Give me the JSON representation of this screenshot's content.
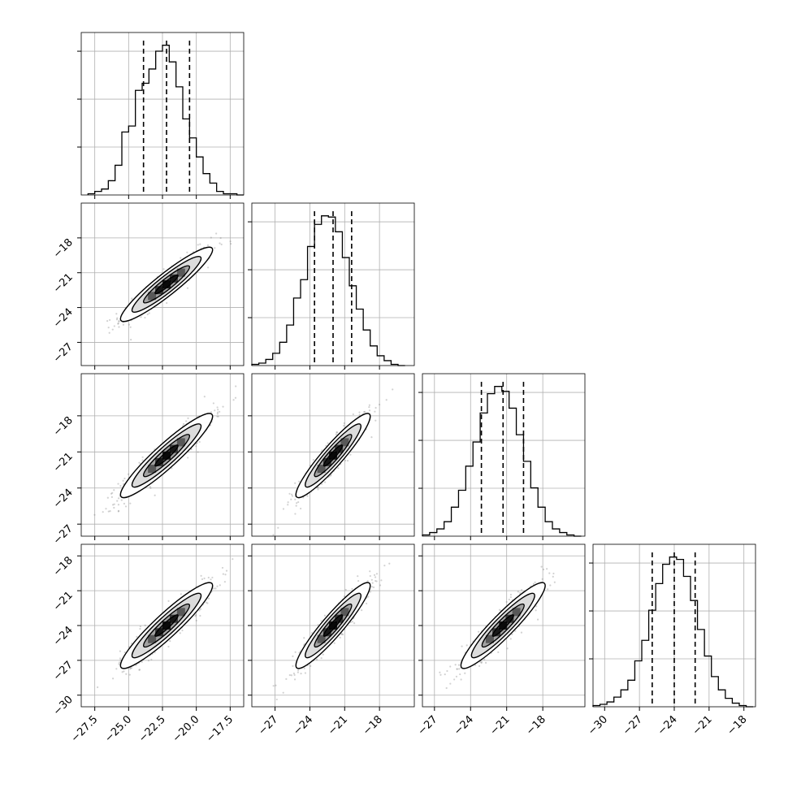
{
  "chart_data": {
    "type": "corner",
    "parameters": 4,
    "marginals": [
      {
        "name": "",
        "range": [
          -28.5,
          -16.5
        ],
        "ticks": [
          -27.5,
          -25.0,
          -22.5,
          -20.0,
          -17.5
        ],
        "tick_labels": [
          "−27.5",
          "−25.0",
          "−22.5",
          "−20.0",
          "−17.5"
        ],
        "quantiles": [
          -23.9,
          -22.2,
          -20.5
        ],
        "bin_centers": [
          -27.75,
          -27.25,
          -26.75,
          -26.25,
          -25.75,
          -25.25,
          -24.75,
          -24.25,
          -23.75,
          -23.25,
          -22.75,
          -22.25,
          -21.75,
          -21.25,
          -20.75,
          -20.25,
          -19.75,
          -19.25,
          -18.75,
          -18.25,
          -17.75,
          -17.25,
          -16.75
        ],
        "counts": [
          1,
          3,
          5,
          12,
          25,
          53,
          58,
          88,
          94,
          106,
          121,
          126,
          112,
          91,
          64,
          48,
          32,
          18,
          10,
          3,
          1,
          1,
          0
        ]
      },
      {
        "name": "",
        "range": [
          -29.0,
          -15.0
        ],
        "ticks": [
          -27,
          -24,
          -21,
          -18
        ],
        "tick_labels": [
          "−27",
          "−24",
          "−21",
          "−18"
        ],
        "quantiles": [
          -23.6,
          -22.0,
          -20.4
        ],
        "bin_centers": [
          -28.7,
          -28.1,
          -27.5,
          -26.9,
          -26.3,
          -25.7,
          -25.1,
          -24.5,
          -23.9,
          -23.3,
          -22.7,
          -22.1,
          -21.5,
          -20.9,
          -20.3,
          -19.7,
          -19.1,
          -18.5,
          -17.9,
          -17.3,
          -16.7,
          -16.1
        ],
        "counts": [
          1,
          2,
          5,
          10,
          19,
          33,
          55,
          70,
          97,
          115,
          122,
          121,
          109,
          88,
          65,
          46,
          29,
          16,
          8,
          4,
          1,
          0
        ]
      },
      {
        "name": "",
        "range": [
          -28.0,
          -14.5
        ],
        "ticks": [
          -27,
          -24,
          -21,
          -18
        ],
        "tick_labels": [
          "−27",
          "−24",
          "−21",
          "−18"
        ],
        "quantiles": [
          -23.1,
          -21.3,
          -19.6
        ],
        "bin_centers": [
          -27.7,
          -27.1,
          -26.5,
          -25.9,
          -25.3,
          -24.7,
          -24.1,
          -23.5,
          -22.9,
          -22.3,
          -21.7,
          -21.1,
          -20.5,
          -19.9,
          -19.3,
          -18.7,
          -18.1,
          -17.5,
          -16.9,
          -16.3,
          -15.7,
          -15.1
        ],
        "counts": [
          1,
          3,
          6,
          12,
          24,
          38,
          58,
          78,
          102,
          118,
          124,
          120,
          106,
          84,
          62,
          40,
          24,
          12,
          6,
          3,
          1,
          0
        ]
      },
      {
        "name": "",
        "range": [
          -31.0,
          -17.0
        ],
        "ticks": [
          -30,
          -27,
          -24,
          -21,
          -18
        ],
        "tick_labels": [
          "−30",
          "−27",
          "−24",
          "−21",
          "−18"
        ],
        "quantiles": [
          -25.9,
          -24.0,
          -22.2
        ],
        "bin_centers": [
          -30.7,
          -30.1,
          -29.5,
          -28.9,
          -28.3,
          -27.7,
          -27.1,
          -26.5,
          -25.9,
          -25.3,
          -24.7,
          -24.1,
          -23.5,
          -22.9,
          -22.3,
          -21.7,
          -21.1,
          -20.5,
          -19.9,
          -19.3,
          -18.7,
          -18.1,
          -17.5
        ],
        "counts": [
          1,
          2,
          4,
          8,
          14,
          22,
          38,
          55,
          80,
          102,
          118,
          124,
          122,
          108,
          88,
          64,
          42,
          25,
          14,
          7,
          3,
          1,
          0
        ]
      }
    ],
    "joint_panels": [
      {
        "row": 1,
        "col": 0,
        "center": [
          -22.2,
          -22.0
        ],
        "rho": 0.93
      },
      {
        "row": 2,
        "col": 0,
        "center": [
          -22.2,
          -21.3
        ],
        "rho": 0.93
      },
      {
        "row": 2,
        "col": 1,
        "center": [
          -22.0,
          -21.3
        ],
        "rho": 0.93
      },
      {
        "row": 3,
        "col": 0,
        "center": [
          -22.2,
          -24.0
        ],
        "rho": 0.93
      },
      {
        "row": 3,
        "col": 1,
        "center": [
          -22.0,
          -24.0
        ],
        "rho": 0.93
      },
      {
        "row": 3,
        "col": 2,
        "center": [
          -21.3,
          -24.0
        ],
        "rho": 0.93
      }
    ],
    "contour_levels_sigma": [
      0.5,
      1.0,
      1.5,
      2.0
    ],
    "histogram_bins": "step",
    "grid": true,
    "colors": {
      "line": "#000000",
      "scatter": "#7f7f7f",
      "grid": "#b0b0b0",
      "axis": "#000000"
    }
  }
}
